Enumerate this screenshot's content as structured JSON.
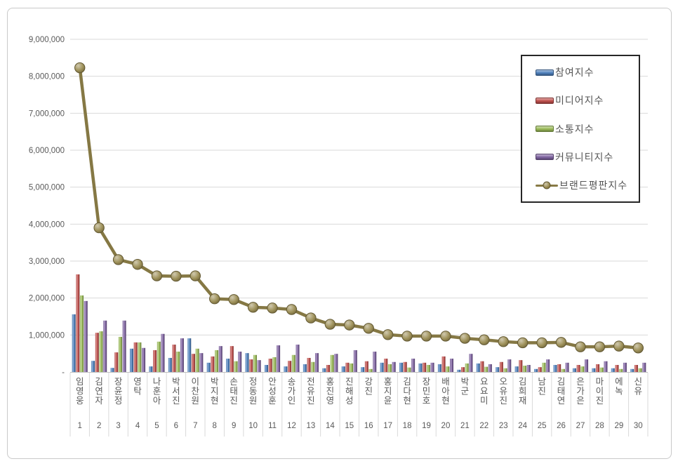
{
  "chart_data": {
    "type": "bar",
    "title": "",
    "categories": [
      "임영웅",
      "김연자",
      "장윤정",
      "영탁",
      "나훈아",
      "박서진",
      "이찬원",
      "박지현",
      "손태진",
      "정동원",
      "안성훈",
      "송가인",
      "전유진",
      "홍진영",
      "진해성",
      "강진",
      "홍지윤",
      "김다현",
      "장민호",
      "배아현",
      "박군",
      "요요미",
      "오유진",
      "김희재",
      "남진",
      "김태연",
      "은가은",
      "마이진",
      "에녹",
      "신유"
    ],
    "category_ranks": [
      "1",
      "2",
      "3",
      "4",
      "5",
      "6",
      "7",
      "8",
      "9",
      "10",
      "11",
      "12",
      "13",
      "14",
      "15",
      "16",
      "17",
      "18",
      "19",
      "20",
      "21",
      "22",
      "23",
      "24",
      "25",
      "26",
      "27",
      "28",
      "29",
      "30"
    ],
    "series": [
      {
        "name": "참여지수",
        "kind": "bar",
        "color": "#4F81BD",
        "values": [
          1560000,
          300000,
          110000,
          630000,
          150000,
          380000,
          910000,
          250000,
          360000,
          510000,
          190000,
          150000,
          210000,
          100000,
          150000,
          130000,
          250000,
          250000,
          230000,
          210000,
          60000,
          230000,
          130000,
          150000,
          80000,
          190000,
          100000,
          100000,
          100000,
          80000
        ]
      },
      {
        "name": "미디어지수",
        "kind": "bar",
        "color": "#C0504D",
        "values": [
          2640000,
          1060000,
          530000,
          800000,
          590000,
          740000,
          490000,
          420000,
          700000,
          340000,
          360000,
          300000,
          380000,
          190000,
          250000,
          290000,
          360000,
          270000,
          250000,
          420000,
          130000,
          290000,
          270000,
          320000,
          130000,
          210000,
          190000,
          210000,
          190000,
          190000
        ]
      },
      {
        "name": "소통지수",
        "kind": "bar",
        "color": "#9BBB59",
        "values": [
          2070000,
          1100000,
          950000,
          800000,
          820000,
          550000,
          630000,
          590000,
          290000,
          460000,
          400000,
          460000,
          270000,
          460000,
          230000,
          80000,
          210000,
          120000,
          190000,
          150000,
          230000,
          140000,
          100000,
          170000,
          250000,
          80000,
          150000,
          120000,
          80000,
          100000
        ]
      },
      {
        "name": "커뮤니티지수",
        "kind": "bar",
        "color": "#8064A2",
        "values": [
          1920000,
          1390000,
          1390000,
          650000,
          1030000,
          910000,
          510000,
          700000,
          550000,
          320000,
          720000,
          740000,
          510000,
          490000,
          590000,
          550000,
          270000,
          360000,
          250000,
          360000,
          490000,
          210000,
          340000,
          190000,
          340000,
          250000,
          340000,
          290000,
          250000,
          250000
        ]
      },
      {
        "name": "브랜드평판지수",
        "kind": "line",
        "color": "#97884D",
        "values": [
          8230000,
          3900000,
          3040000,
          2910000,
          2600000,
          2590000,
          2600000,
          1980000,
          1960000,
          1750000,
          1730000,
          1690000,
          1460000,
          1290000,
          1270000,
          1180000,
          1010000,
          970000,
          970000,
          970000,
          910000,
          870000,
          820000,
          790000,
          790000,
          800000,
          680000,
          680000,
          700000,
          650000
        ]
      }
    ],
    "ylim": [
      0,
      9000000
    ],
    "ytick_interval": 1000000,
    "ytick_labels": [
      "-",
      "1,000,000",
      "2,000,000",
      "3,000,000",
      "4,000,000",
      "5,000,000",
      "6,000,000",
      "7,000,000",
      "8,000,000",
      "9,000,000"
    ],
    "grid": true,
    "legend_position": "top-right",
    "axis_text_color": "#595959",
    "gridline_color": "#d9d9d9",
    "axis_line_color": "#bfbfbf"
  }
}
